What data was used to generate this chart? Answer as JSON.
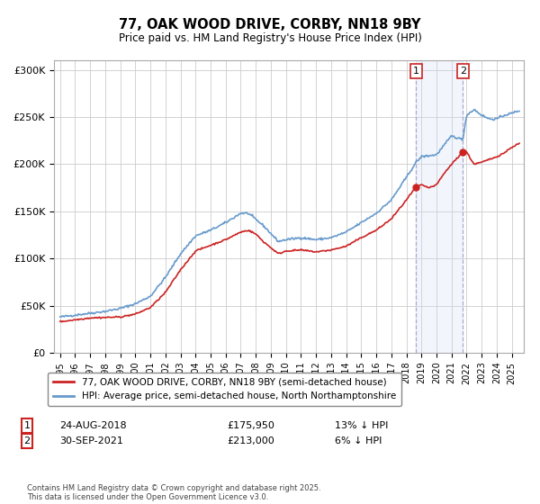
{
  "title": "77, OAK WOOD DRIVE, CORBY, NN18 9BY",
  "subtitle": "Price paid vs. HM Land Registry's House Price Index (HPI)",
  "ylim": [
    0,
    310000
  ],
  "yticks": [
    0,
    50000,
    100000,
    150000,
    200000,
    250000,
    300000
  ],
  "ytick_labels": [
    "£0",
    "£50K",
    "£100K",
    "£150K",
    "£200K",
    "£250K",
    "£300K"
  ],
  "hpi_color": "#6699cc",
  "price_color": "#cc2222",
  "shade_color": "#ccddf5",
  "transaction1": {
    "date": "24-AUG-2018",
    "price": 175950,
    "hpi_diff": "13% ↓ HPI",
    "label": "1"
  },
  "transaction2": {
    "date": "30-SEP-2021",
    "price": 213000,
    "hpi_diff": "6% ↓ HPI",
    "label": "2"
  },
  "legend_line1": "77, OAK WOOD DRIVE, CORBY, NN18 9BY (semi-detached house)",
  "legend_line2": "HPI: Average price, semi-detached house, North Northamptonshire",
  "footnote": "Contains HM Land Registry data © Crown copyright and database right 2025.\nThis data is licensed under the Open Government Licence v3.0.",
  "xstart": 1994.6,
  "xend": 2025.8,
  "t1": 2018.646,
  "t2": 2021.747
}
